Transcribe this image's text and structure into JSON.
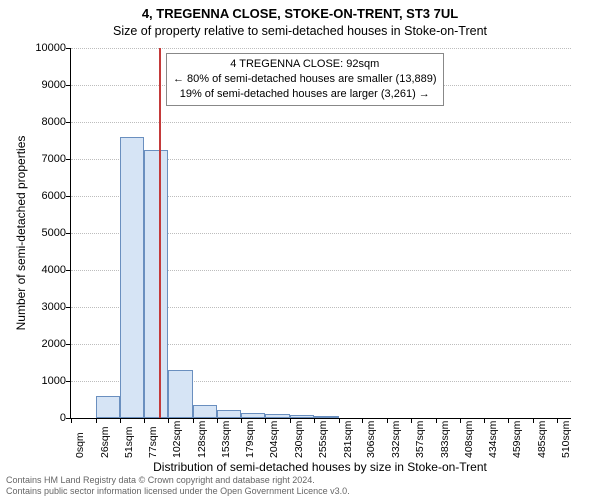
{
  "chart": {
    "type": "histogram",
    "title": "4, TREGENNA CLOSE, STOKE-ON-TRENT, ST3 7UL",
    "subtitle": "Size of property relative to semi-detached houses in Stoke-on-Trent",
    "y_axis_label": "Number of semi-detached properties",
    "x_axis_label": "Distribution of semi-detached houses by size in Stoke-on-Trent",
    "background_color": "#ffffff",
    "grid_color": "#bdbdbd",
    "bar_fill": "#d6e4f5",
    "bar_stroke": "#6a8fbf",
    "ref_line_color": "#c43a3a",
    "ylim": [
      0,
      10000
    ],
    "y_ticks": [
      0,
      1000,
      2000,
      3000,
      4000,
      5000,
      6000,
      7000,
      8000,
      9000,
      10000
    ],
    "xlim": [
      0,
      525
    ],
    "x_ticks": [
      0,
      26,
      51,
      77,
      102,
      128,
      153,
      179,
      204,
      230,
      255,
      281,
      306,
      332,
      357,
      383,
      408,
      434,
      459,
      485,
      510
    ],
    "x_tick_labels": [
      "0sqm",
      "26sqm",
      "51sqm",
      "77sqm",
      "102sqm",
      "128sqm",
      "153sqm",
      "179sqm",
      "204sqm",
      "230sqm",
      "255sqm",
      "281sqm",
      "306sqm",
      "332sqm",
      "357sqm",
      "383sqm",
      "408sqm",
      "434sqm",
      "459sqm",
      "485sqm",
      "510sqm"
    ],
    "bars": [
      {
        "x0": 26,
        "x1": 51,
        "count": 600
      },
      {
        "x0": 51,
        "x1": 77,
        "count": 7600
      },
      {
        "x0": 77,
        "x1": 102,
        "count": 7250
      },
      {
        "x0": 102,
        "x1": 128,
        "count": 1300
      },
      {
        "x0": 128,
        "x1": 153,
        "count": 350
      },
      {
        "x0": 153,
        "x1": 179,
        "count": 220
      },
      {
        "x0": 179,
        "x1": 204,
        "count": 130
      },
      {
        "x0": 204,
        "x1": 230,
        "count": 100
      },
      {
        "x0": 230,
        "x1": 255,
        "count": 70
      },
      {
        "x0": 255,
        "x1": 281,
        "count": 60
      }
    ],
    "reference_value_sqm": 92,
    "annotation": {
      "line1": "4 TREGENNA CLOSE: 92sqm",
      "line2": "← 80% of semi-detached houses are smaller (13,889)",
      "line3": "19% of semi-detached houses are larger (3,261) →"
    },
    "footer_line1": "Contains HM Land Registry data © Crown copyright and database right 2024.",
    "footer_line2": "Contains public sector information licensed under the Open Government Licence v3.0."
  }
}
